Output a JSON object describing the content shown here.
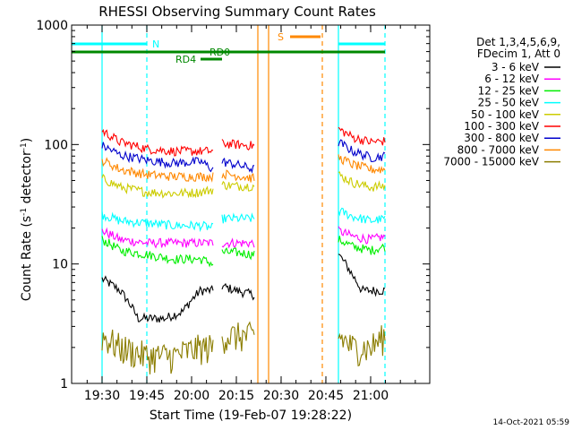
{
  "chart_data": {
    "type": "line",
    "title": "RHESSI Observing Summary Count Rates",
    "xlabel": "Start Time (19-Feb-07 19:28:22)",
    "ylabel_main": "Count Rate (s",
    "ylabel_sup1": "-1",
    "ylabel_mid": " detector",
    "ylabel_sup2": "-1",
    "ylabel_end": ")",
    "y_scale": "log",
    "ylim": [
      1,
      1000
    ],
    "y_ticks": [
      {
        "value": 1,
        "label": "1"
      },
      {
        "value": 10,
        "label": "10"
      },
      {
        "value": 100,
        "label": "100"
      },
      {
        "value": 1000,
        "label": "1000"
      }
    ],
    "xlim_minutes": [
      19.33,
      21.33
    ],
    "x_ticks": [
      {
        "value": 19.5,
        "label": "19:30"
      },
      {
        "value": 19.75,
        "label": "19:45"
      },
      {
        "value": 20.0,
        "label": "20:00"
      },
      {
        "value": 20.25,
        "label": "20:15"
      },
      {
        "value": 20.5,
        "label": "20:30"
      },
      {
        "value": 20.75,
        "label": "20:45"
      },
      {
        "value": 21.0,
        "label": "21:00"
      }
    ],
    "legend_header": [
      "Det 1,3,4,5,6,9,",
      "FDecim 1, Att 0"
    ],
    "legend_position": "right",
    "series": [
      {
        "name": "3 - 6 keV",
        "color": "#000000",
        "seg1": [
          [
            19.5,
            7.5
          ],
          [
            19.6,
            6
          ],
          [
            19.7,
            3.5
          ],
          [
            19.85,
            3.5
          ],
          [
            19.95,
            4
          ],
          [
            20.05,
            6
          ],
          [
            20.12,
            6
          ]
        ],
        "seg2": [
          [
            20.17,
            6.5
          ],
          [
            20.25,
            6
          ],
          [
            20.35,
            5.5
          ]
        ],
        "seg3": [
          [
            20.82,
            12
          ],
          [
            20.9,
            8
          ],
          [
            20.95,
            6
          ],
          [
            21.05,
            6
          ],
          [
            21.08,
            6
          ]
        ]
      },
      {
        "name": "6 - 12 keV",
        "color": "#ff00ff",
        "seg1": [
          [
            19.5,
            19
          ],
          [
            19.6,
            16
          ],
          [
            19.75,
            15
          ],
          [
            19.9,
            15
          ],
          [
            20.12,
            15
          ]
        ],
        "seg2": [
          [
            20.17,
            15
          ],
          [
            20.25,
            15
          ],
          [
            20.35,
            15
          ]
        ],
        "seg3": [
          [
            20.82,
            19
          ],
          [
            20.9,
            17
          ],
          [
            21.0,
            16
          ],
          [
            21.08,
            17
          ]
        ]
      },
      {
        "name": "12 - 25 keV",
        "color": "#00ee00",
        "seg1": [
          [
            19.5,
            16
          ],
          [
            19.6,
            13
          ],
          [
            19.75,
            12
          ],
          [
            19.9,
            11
          ],
          [
            20.05,
            11
          ],
          [
            20.12,
            10
          ]
        ],
        "seg2": [
          [
            20.17,
            12.5
          ],
          [
            20.25,
            12.5
          ],
          [
            20.35,
            12
          ]
        ],
        "seg3": [
          [
            20.82,
            16
          ],
          [
            20.9,
            14
          ],
          [
            21.0,
            13
          ],
          [
            21.08,
            14
          ]
        ]
      },
      {
        "name": "25 - 50 keV",
        "color": "#00ffff",
        "seg1": [
          [
            19.5,
            26
          ],
          [
            19.6,
            23
          ],
          [
            19.75,
            22
          ],
          [
            19.9,
            21
          ],
          [
            20.05,
            21
          ],
          [
            20.12,
            20
          ]
        ],
        "seg2": [
          [
            20.17,
            24
          ],
          [
            20.25,
            24
          ],
          [
            20.35,
            24
          ]
        ],
        "seg3": [
          [
            20.82,
            28
          ],
          [
            20.9,
            25
          ],
          [
            21.0,
            23
          ],
          [
            21.08,
            24
          ]
        ]
      },
      {
        "name": "50 - 100 keV",
        "color": "#cccc00",
        "seg1": [
          [
            19.5,
            52
          ],
          [
            19.6,
            44
          ],
          [
            19.75,
            40
          ],
          [
            19.9,
            39
          ],
          [
            20.05,
            40
          ],
          [
            20.12,
            42
          ]
        ],
        "seg2": [
          [
            20.17,
            46
          ],
          [
            20.25,
            45
          ],
          [
            20.35,
            45
          ]
        ],
        "seg3": [
          [
            20.82,
            56
          ],
          [
            20.9,
            48
          ],
          [
            21.0,
            44
          ],
          [
            21.08,
            45
          ]
        ]
      },
      {
        "name": "100 - 300 keV",
        "color": "#ff0000",
        "seg1": [
          [
            19.5,
            130
          ],
          [
            19.6,
            105
          ],
          [
            19.75,
            92
          ],
          [
            19.9,
            88
          ],
          [
            20.05,
            88
          ],
          [
            20.12,
            88
          ]
        ],
        "seg2": [
          [
            20.17,
            102
          ],
          [
            20.25,
            100
          ],
          [
            20.35,
            98
          ]
        ],
        "seg3": [
          [
            20.82,
            135
          ],
          [
            20.9,
            115
          ],
          [
            21.0,
            105
          ],
          [
            21.08,
            107
          ]
        ]
      },
      {
        "name": "300 - 800 keV",
        "color": "#0000cc",
        "seg1": [
          [
            19.5,
            98
          ],
          [
            19.6,
            82
          ],
          [
            19.75,
            74
          ],
          [
            19.9,
            70
          ],
          [
            20.05,
            72
          ],
          [
            20.12,
            62
          ]
        ],
        "seg2": [
          [
            20.17,
            72
          ],
          [
            20.25,
            68
          ],
          [
            20.35,
            62
          ]
        ],
        "seg3": [
          [
            20.82,
            105
          ],
          [
            20.9,
            88
          ],
          [
            21.0,
            78
          ],
          [
            21.08,
            80
          ]
        ]
      },
      {
        "name": "800 - 7000 keV",
        "color": "#ff8800",
        "seg1": [
          [
            19.5,
            74
          ],
          [
            19.6,
            62
          ],
          [
            19.75,
            56
          ],
          [
            19.9,
            54
          ],
          [
            20.05,
            54
          ],
          [
            20.12,
            54
          ]
        ],
        "seg2": [
          [
            20.17,
            57
          ],
          [
            20.25,
            55
          ],
          [
            20.35,
            52
          ]
        ],
        "seg3": [
          [
            20.82,
            78
          ],
          [
            20.9,
            68
          ],
          [
            21.0,
            62
          ],
          [
            21.08,
            62
          ]
        ]
      },
      {
        "name": "7000 - 15000 keV",
        "color": "#8b7d00",
        "seg1": [
          [
            19.5,
            2.5
          ],
          [
            19.6,
            2
          ],
          [
            19.75,
            1.7
          ],
          [
            19.9,
            1.7
          ],
          [
            20.05,
            2
          ],
          [
            20.12,
            2
          ]
        ],
        "seg2": [
          [
            20.17,
            2.5
          ],
          [
            20.25,
            2.5
          ],
          [
            20.35,
            2.5
          ]
        ],
        "seg3": [
          [
            20.82,
            2.5
          ],
          [
            20.9,
            2
          ],
          [
            21.0,
            2
          ],
          [
            21.08,
            2.5
          ]
        ]
      }
    ],
    "flags": [
      {
        "label": "N",
        "color": "#00ffff",
        "segments": [
          [
            19.33,
            19.75
          ],
          [
            20.82,
            21.08
          ]
        ]
      },
      {
        "label": "S",
        "color": "#ff8800",
        "segments": [
          [
            20.55,
            20.72
          ]
        ]
      },
      {
        "label": "RD0",
        "color": "#008800",
        "segments": [
          [
            19.33,
            21.08
          ]
        ]
      },
      {
        "label": "RD4",
        "color": "#008800",
        "segments": [
          [
            20.05,
            20.17
          ]
        ]
      }
    ],
    "markers": [
      {
        "color": "#00ffff",
        "style": "solid",
        "x": 19.5
      },
      {
        "color": "#00ffff",
        "style": "dashed",
        "x": 19.75
      },
      {
        "color": "#ff8800",
        "style": "solid",
        "x": 20.37
      },
      {
        "color": "#ff8800",
        "style": "solid",
        "x": 20.43
      },
      {
        "color": "#ff8800",
        "style": "dashed",
        "x": 20.73
      },
      {
        "color": "#00ffff",
        "style": "solid",
        "x": 20.82
      },
      {
        "color": "#00ffff",
        "style": "dashed",
        "x": 21.08
      }
    ]
  },
  "footer_timestamp": "14-Oct-2021 05:59"
}
